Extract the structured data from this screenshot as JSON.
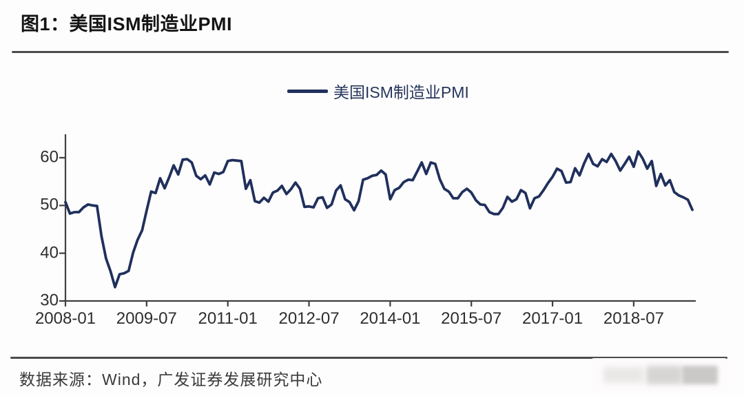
{
  "figure": {
    "title": "图1：美国ISM制造业PMI",
    "source": "数据来源：Wind，广发证券发展研究中心"
  },
  "colors": {
    "line": "#20305c",
    "axis": "#3f3f3f",
    "divider": "#4b4b4b",
    "tick_text": "#2e2e2e"
  },
  "chart_data": {
    "type": "line",
    "title": "美国ISM制造业PMI",
    "legend_label": "美国ISM制造业PMI",
    "legend_position": "top-center",
    "grid": false,
    "x_frequency": "monthly",
    "x_start": "2008-01",
    "x_end": "2019-08",
    "x_tick_labels": [
      "2008-01",
      "2009-07",
      "2011-01",
      "2012-07",
      "2014-01",
      "2015-07",
      "2017-01",
      "2018-07"
    ],
    "x_tick_interval_months": 18,
    "y_ticks": [
      60,
      50,
      40,
      30
    ],
    "ylim": [
      30,
      65
    ],
    "values": [
      50.7,
      48.3,
      48.6,
      48.6,
      49.6,
      50.2,
      50.0,
      49.9,
      43.5,
      38.9,
      36.2,
      32.9,
      35.6,
      35.8,
      36.3,
      40.1,
      42.8,
      44.8,
      48.9,
      52.9,
      52.6,
      55.7,
      53.6,
      55.9,
      58.4,
      56.5,
      59.6,
      59.7,
      59.0,
      56.2,
      55.5,
      56.3,
      54.4,
      56.9,
      56.6,
      57.0,
      59.3,
      59.5,
      59.4,
      59.3,
      53.5,
      55.3,
      50.9,
      50.6,
      51.6,
      50.8,
      52.7,
      53.1,
      54.1,
      52.4,
      53.4,
      54.8,
      53.5,
      49.7,
      49.8,
      49.6,
      51.5,
      51.7,
      49.5,
      50.2,
      53.1,
      54.2,
      51.3,
      50.7,
      49.0,
      50.9,
      55.4,
      55.7,
      56.2,
      56.4,
      57.3,
      56.5,
      51.3,
      53.2,
      53.7,
      54.9,
      55.4,
      55.3,
      57.1,
      59.0,
      56.6,
      59.0,
      58.7,
      55.5,
      53.5,
      52.9,
      51.5,
      51.5,
      52.8,
      53.5,
      52.7,
      51.1,
      50.2,
      50.1,
      48.6,
      48.2,
      48.2,
      49.5,
      51.8,
      50.8,
      51.3,
      53.2,
      52.6,
      49.4,
      51.5,
      51.9,
      53.2,
      54.7,
      56.0,
      57.7,
      57.2,
      54.8,
      54.9,
      57.8,
      56.3,
      58.8,
      60.8,
      58.7,
      58.2,
      59.7,
      59.1,
      60.8,
      59.3,
      57.3,
      58.7,
      60.2,
      58.1,
      61.3,
      59.8,
      57.7,
      59.3,
      54.1,
      56.6,
      54.2,
      55.3,
      52.8,
      52.1,
      51.7,
      51.2,
      49.1
    ]
  }
}
